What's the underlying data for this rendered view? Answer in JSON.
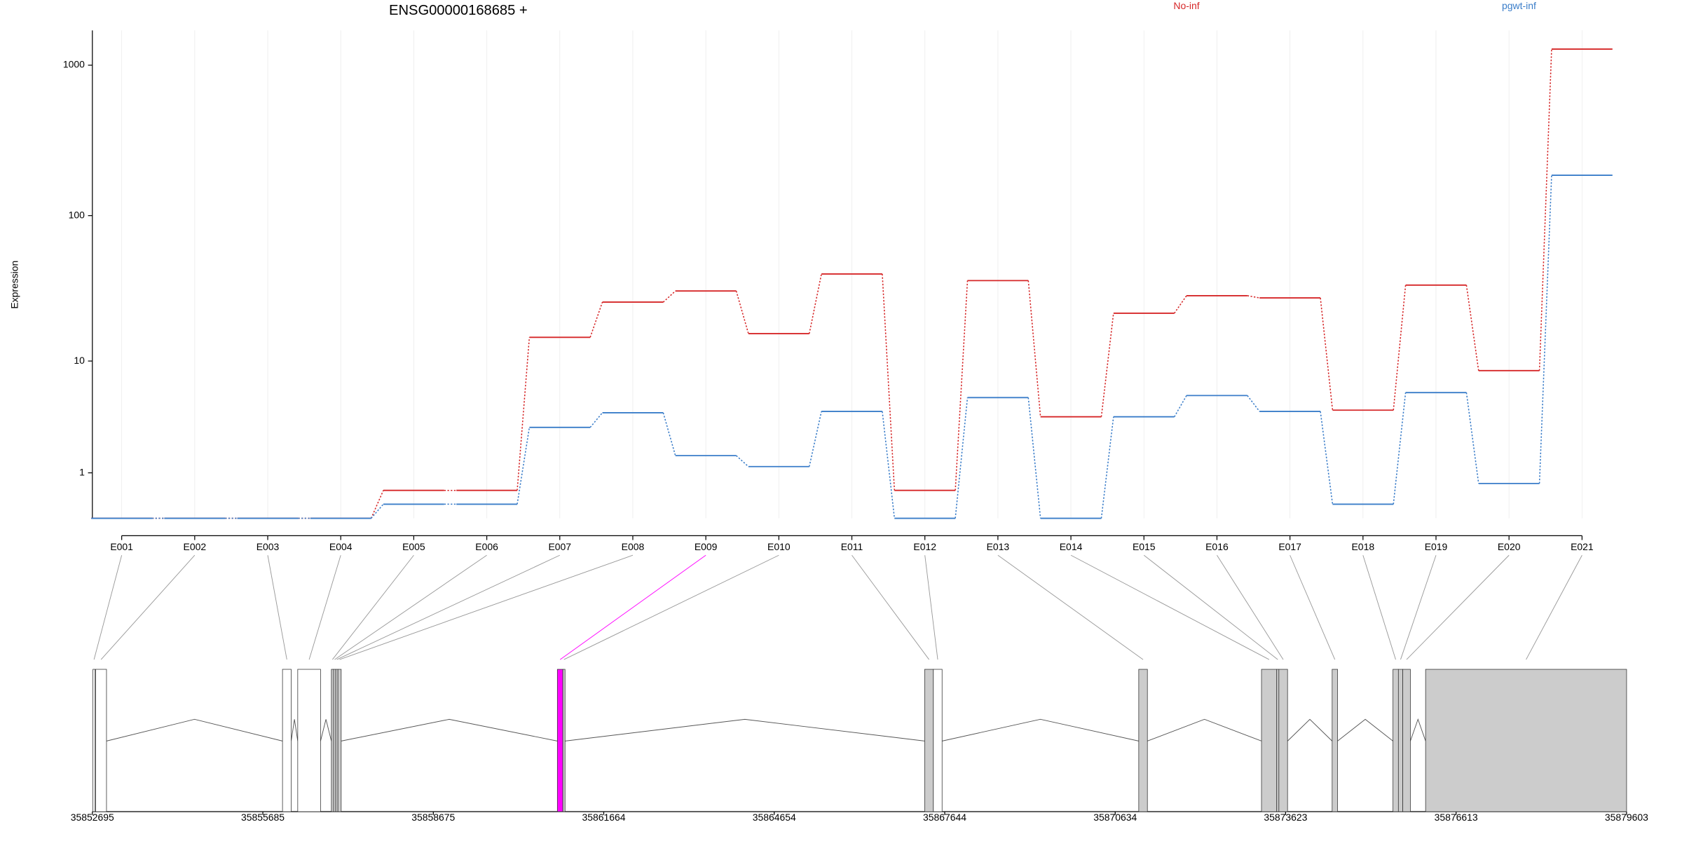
{
  "chart_data": [
    {
      "type": "exon-steps",
      "title": "ENSG00000168685 +",
      "y_label": "Expression",
      "categories": [
        "E001",
        "E002",
        "E003",
        "E004",
        "E005",
        "E006",
        "E007",
        "E008",
        "E009",
        "E010",
        "E011",
        "E012",
        "E013",
        "E014",
        "E015",
        "E016",
        "E017",
        "E018",
        "E019",
        "E020",
        "E021"
      ],
      "series": [
        {
          "name": "No-inf",
          "color": "#d62728",
          "values": [
            0,
            0,
            0,
            0,
            0.53,
            0.53,
            14.8,
            26,
            31,
            15.7,
            40.5,
            0.53,
            36.5,
            3.7,
            21.8,
            28.8,
            27.8,
            4.2,
            34,
            8.5,
            1278
          ]
        },
        {
          "name": "pgwt-inf",
          "color": "#3a7dc9",
          "values": [
            0,
            0,
            0,
            0,
            0.24,
            0.24,
            3.0,
            4.0,
            1.6,
            1.2,
            4.1,
            0,
            5.3,
            0,
            3.7,
            5.5,
            4.1,
            0.24,
            5.8,
            0.7,
            186
          ]
        }
      ],
      "yscale": "log1p",
      "ylim": [
        0,
        1700
      ],
      "yticks": [
        1,
        10,
        100,
        1000
      ],
      "grid": true
    },
    {
      "type": "gene-model",
      "xlim": [
        35852695,
        35879603
      ],
      "xticks": [
        35852695,
        35855685,
        35858675,
        35861664,
        35864654,
        35867644,
        35870634,
        35873623,
        35876613,
        35879603
      ],
      "exons": [
        {
          "start": 35852705,
          "end": 35852743,
          "color": "#ffffff"
        },
        {
          "start": 35852752,
          "end": 35852943,
          "color": "#ffffff"
        },
        {
          "start": 35856030,
          "end": 35856182,
          "color": "#ffffff"
        },
        {
          "start": 35856297,
          "end": 35856697,
          "color": "#ffffff"
        },
        {
          "start": 35856887,
          "end": 35856925,
          "color": "#cccccc"
        },
        {
          "start": 35856925,
          "end": 35856964,
          "color": "#cccccc"
        },
        {
          "start": 35856964,
          "end": 35857002,
          "color": "#cccccc"
        },
        {
          "start": 35857002,
          "end": 35857059,
          "color": "#cccccc"
        },
        {
          "start": 35860851,
          "end": 35860947,
          "color": "#ff00ff"
        },
        {
          "start": 35860947,
          "end": 35860985,
          "color": "#cccccc"
        },
        {
          "start": 35867293,
          "end": 35867445,
          "color": "#cccccc"
        },
        {
          "start": 35867445,
          "end": 35867598,
          "color": "#ffffff"
        },
        {
          "start": 35871047,
          "end": 35871199,
          "color": "#cccccc"
        },
        {
          "start": 35873200,
          "end": 35873467,
          "color": "#cccccc"
        },
        {
          "start": 35873467,
          "end": 35873505,
          "color": "#cccccc"
        },
        {
          "start": 35873505,
          "end": 35873657,
          "color": "#cccccc"
        },
        {
          "start": 35874439,
          "end": 35874534,
          "color": "#cccccc"
        },
        {
          "start": 35875506,
          "end": 35875601,
          "color": "#cccccc"
        },
        {
          "start": 35875601,
          "end": 35875678,
          "color": "#cccccc"
        },
        {
          "start": 35875678,
          "end": 35875811,
          "color": "#cccccc"
        },
        {
          "start": 35876078,
          "end": 35879603,
          "color": "#cccccc"
        }
      ]
    }
  ]
}
